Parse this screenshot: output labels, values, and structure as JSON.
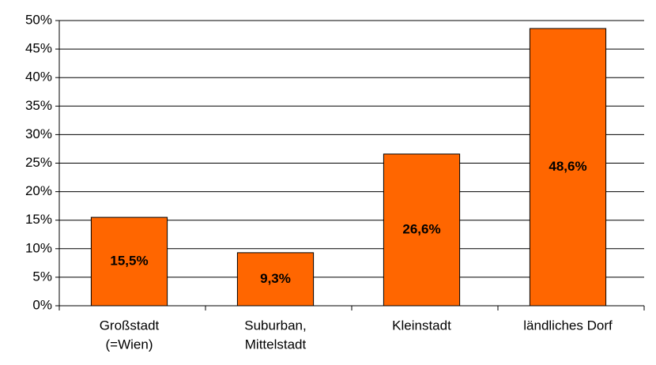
{
  "chart_data": {
    "type": "bar",
    "categories": [
      [
        "Großstadt",
        "(=Wien)"
      ],
      [
        "Suburban,",
        "Mittelstadt"
      ],
      [
        "Kleinstadt"
      ],
      [
        "ländliches Dorf"
      ]
    ],
    "values": [
      15.5,
      9.3,
      26.6,
      48.6
    ],
    "value_labels": [
      "15,5%",
      "9,3%",
      "26,6%",
      "48,6%"
    ],
    "color": "#ff6600",
    "ylim": [
      0,
      50
    ],
    "yticks": [
      {
        "value": 0,
        "label": "0%"
      },
      {
        "value": 5,
        "label": "5%"
      },
      {
        "value": 10,
        "label": "10%"
      },
      {
        "value": 15,
        "label": "15%"
      },
      {
        "value": 20,
        "label": "20%"
      },
      {
        "value": 25,
        "label": "25%"
      },
      {
        "value": 30,
        "label": "30%"
      },
      {
        "value": 35,
        "label": "35%"
      },
      {
        "value": 40,
        "label": "40%"
      },
      {
        "value": 45,
        "label": "45%"
      },
      {
        "value": 50,
        "label": "50%"
      }
    ],
    "grid": true
  }
}
